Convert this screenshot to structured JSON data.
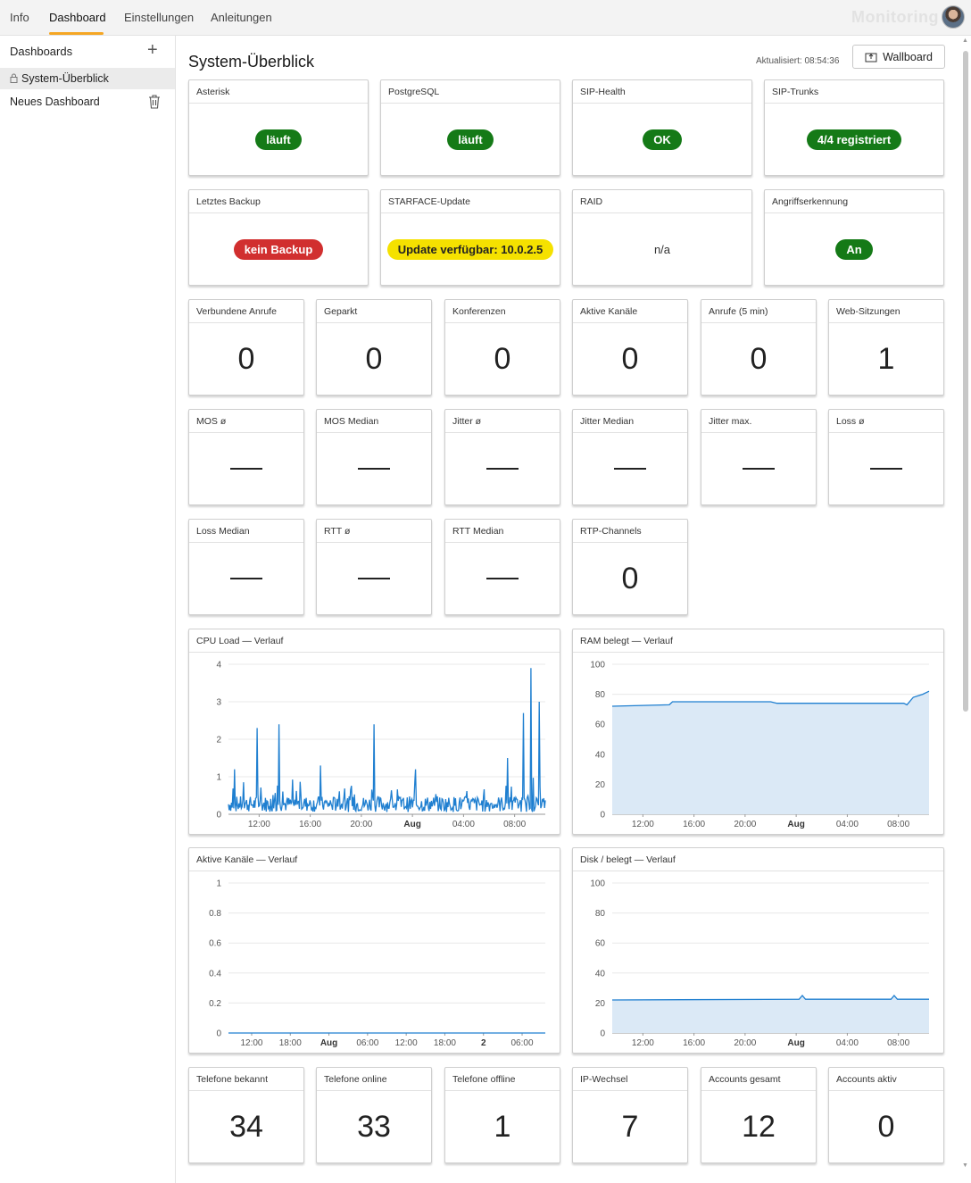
{
  "nav": {
    "tabs": [
      "Info",
      "Dashboard",
      "Einstellungen",
      "Anleitungen"
    ],
    "active": "Dashboard",
    "brand": "Monitoring"
  },
  "sidebar": {
    "title": "Dashboards",
    "items": [
      {
        "label": "System-Überblick",
        "locked": true
      },
      {
        "label": "Neues Dashboard",
        "locked": false
      }
    ]
  },
  "main": {
    "title": "System-Überblick",
    "updated": "Aktualisiert: 08:54:36",
    "wallboard_label": "Wallboard"
  },
  "status_tiles": [
    {
      "title": "Asterisk",
      "value": "läuft",
      "style": "green"
    },
    {
      "title": "PostgreSQL",
      "value": "läuft",
      "style": "green"
    },
    {
      "title": "SIP-Health",
      "value": "OK",
      "style": "green"
    },
    {
      "title": "SIP-Trunks",
      "value": "4/4 registriert",
      "style": "green"
    },
    {
      "title": "Letztes Backup",
      "value": "kein Backup",
      "style": "red"
    },
    {
      "title": "STARFACE-Update",
      "value": "Update verfügbar: 10.0.2.5",
      "style": "yellow"
    },
    {
      "title": "RAID",
      "value": "n/a",
      "style": "plain"
    },
    {
      "title": "Angriffserkennung",
      "value": "An",
      "style": "green"
    }
  ],
  "metric_tiles_row1": [
    {
      "title": "Verbundene Anrufe",
      "value": "0"
    },
    {
      "title": "Geparkt",
      "value": "0"
    },
    {
      "title": "Konferenzen",
      "value": "0"
    },
    {
      "title": "Aktive Kanäle",
      "value": "0"
    },
    {
      "title": "Anrufe (5 min)",
      "value": "0"
    },
    {
      "title": "Web-Sitzungen",
      "value": "1"
    }
  ],
  "metric_tiles_row2": [
    {
      "title": "MOS ø",
      "value": null
    },
    {
      "title": "MOS Median",
      "value": null
    },
    {
      "title": "Jitter ø",
      "value": null
    },
    {
      "title": "Jitter Median",
      "value": null
    },
    {
      "title": "Jitter max.",
      "value": null
    },
    {
      "title": "Loss ø",
      "value": null
    }
  ],
  "metric_tiles_row3": [
    {
      "title": "Loss Median",
      "value": null
    },
    {
      "title": "RTT ø",
      "value": null
    },
    {
      "title": "RTT Median",
      "value": null
    },
    {
      "title": "RTP-Channels",
      "value": "0"
    }
  ],
  "metric_tiles_row4": [
    {
      "title": "Telefone bekannt",
      "value": "34"
    },
    {
      "title": "Telefone online",
      "value": "33"
    },
    {
      "title": "Telefone offline",
      "value": "1"
    },
    {
      "title": "IP-Wechsel",
      "value": "7"
    },
    {
      "title": "Accounts gesamt",
      "value": "12"
    },
    {
      "title": "Accounts aktiv",
      "value": "0"
    }
  ],
  "colors": {
    "accent": "#f5a623",
    "line": "#1f7fd0",
    "fill": "#dbe9f6",
    "ok": "#157a17",
    "error": "#d12f2f",
    "warn": "#f5e100"
  },
  "chart_data": [
    {
      "type": "line",
      "title": "CPU Load — Verlauf",
      "ylim": [
        0,
        4
      ],
      "yticks": [
        "0",
        "1",
        "2",
        "3",
        "4"
      ],
      "xticks": [
        "12:00",
        "16:00",
        "20:00",
        "Aug",
        "04:00",
        "08:00"
      ],
      "baseline": 0.3,
      "spikes": [
        [
          0.02,
          1.2
        ],
        [
          0.09,
          2.3
        ],
        [
          0.16,
          2.4
        ],
        [
          0.29,
          1.3
        ],
        [
          0.46,
          2.4
        ],
        [
          0.59,
          1.2
        ],
        [
          0.88,
          1.5
        ],
        [
          0.93,
          2.7
        ],
        [
          0.955,
          3.9
        ],
        [
          0.98,
          3.0
        ]
      ],
      "area": false
    },
    {
      "type": "area",
      "title": "RAM belegt — Verlauf",
      "ylim": [
        0,
        100
      ],
      "yticks": [
        "0",
        "20",
        "40",
        "60",
        "80",
        "100"
      ],
      "xticks": [
        "12:00",
        "16:00",
        "20:00",
        "Aug",
        "04:00",
        "08:00"
      ],
      "points": [
        [
          0,
          72
        ],
        [
          0.18,
          73
        ],
        [
          0.19,
          75
        ],
        [
          0.5,
          75
        ],
        [
          0.52,
          74
        ],
        [
          0.92,
          74
        ],
        [
          0.93,
          73
        ],
        [
          0.95,
          78
        ],
        [
          0.98,
          80
        ],
        [
          1.0,
          82
        ]
      ],
      "area": true
    },
    {
      "type": "line",
      "title": "Aktive Kanäle — Verlauf",
      "ylim": [
        0,
        1
      ],
      "yticks": [
        "0",
        "0.2",
        "0.4",
        "0.6",
        "0.8",
        "1"
      ],
      "xticks": [
        "12:00",
        "18:00",
        "Aug",
        "06:00",
        "12:00",
        "18:00",
        "2",
        "06:00"
      ],
      "points": [
        [
          0,
          0
        ],
        [
          1,
          0
        ]
      ],
      "area": false
    },
    {
      "type": "area",
      "title": "Disk / belegt — Verlauf",
      "ylim": [
        0,
        100
      ],
      "yticks": [
        "0",
        "20",
        "40",
        "60",
        "80",
        "100"
      ],
      "xticks": [
        "12:00",
        "16:00",
        "20:00",
        "Aug",
        "04:00",
        "08:00"
      ],
      "points": [
        [
          0,
          22
        ],
        [
          0.59,
          22.5
        ],
        [
          0.6,
          25
        ],
        [
          0.61,
          22.5
        ],
        [
          0.88,
          22.5
        ],
        [
          0.89,
          25
        ],
        [
          0.9,
          22.5
        ],
        [
          1.0,
          22.5
        ]
      ],
      "area": true
    }
  ]
}
